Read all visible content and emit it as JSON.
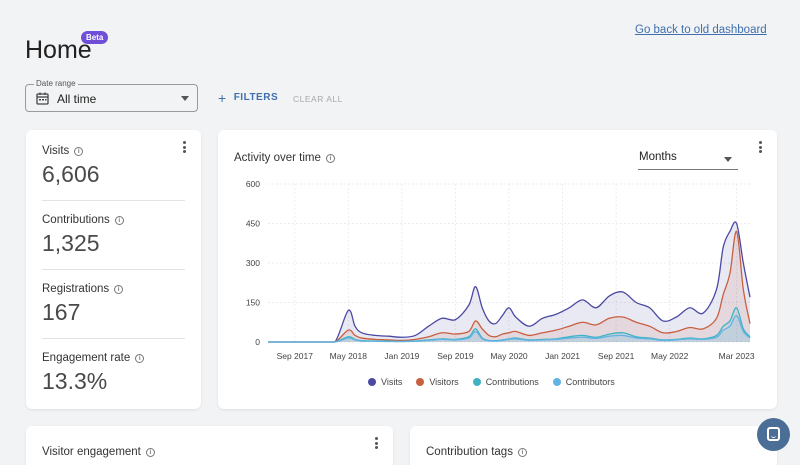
{
  "header": {
    "title": "Home",
    "badge": "Beta",
    "back_link": "Go back to old dashboard"
  },
  "filters": {
    "date_range_label": "Date range",
    "date_range_value": "All time",
    "filters_label": "FILTERS",
    "clear_label": "CLEAR ALL"
  },
  "metrics": [
    {
      "label": "Visits",
      "value": "6,606"
    },
    {
      "label": "Contributions",
      "value": "1,325"
    },
    {
      "label": "Registrations",
      "value": "167"
    },
    {
      "label": "Engagement rate",
      "value": "13.3%"
    }
  ],
  "activity": {
    "title": "Activity over time",
    "granularity": "Months"
  },
  "bottom_cards": {
    "left_title": "Visitor engagement",
    "right_title": "Contribution tags"
  },
  "colors": {
    "visits": "#4b4aa3",
    "visitors": "#c8603f",
    "contributions": "#3fb3c3",
    "contributors": "#62b3e3",
    "accent": "#6f4fd8",
    "link": "#3f6fae"
  },
  "chart_data": {
    "type": "area",
    "title": "Activity over time",
    "yticks": [
      "600",
      "450",
      "300",
      "150",
      "0"
    ],
    "ylim": [
      0,
      600
    ],
    "xlim": [
      "2017-05",
      "2023-05"
    ],
    "xticks": [
      "Sep 2017",
      "May 2018",
      "Jan 2019",
      "Sep 2019",
      "May 2020",
      "Jan 2021",
      "Sep 2021",
      "May 2022",
      "Mar 2023"
    ],
    "grid": true,
    "legend": "bottom",
    "x": [
      "2017-05",
      "2017-09",
      "2018-01",
      "2018-03",
      "2018-05",
      "2018-06",
      "2018-07",
      "2018-09",
      "2018-11",
      "2019-01",
      "2019-03",
      "2019-05",
      "2019-07",
      "2019-09",
      "2019-11",
      "2019-12",
      "2020-01",
      "2020-02",
      "2020-03",
      "2020-04",
      "2020-05",
      "2020-06",
      "2020-08",
      "2020-10",
      "2020-12",
      "2021-02",
      "2021-04",
      "2021-06",
      "2021-08",
      "2021-10",
      "2021-12",
      "2022-02",
      "2022-04",
      "2022-06",
      "2022-08",
      "2022-10",
      "2022-12",
      "2023-01",
      "2023-02",
      "2023-03",
      "2023-04",
      "2023-05"
    ],
    "series": [
      {
        "name": "Visits",
        "values": [
          0,
          0,
          0,
          0,
          120,
          60,
          35,
          25,
          22,
          18,
          25,
          60,
          90,
          85,
          140,
          210,
          130,
          80,
          70,
          100,
          130,
          95,
          60,
          90,
          105,
          130,
          160,
          130,
          175,
          190,
          150,
          130,
          80,
          95,
          130,
          110,
          200,
          360,
          420,
          450,
          300,
          170
        ]
      },
      {
        "name": "Visitors",
        "values": [
          0,
          0,
          0,
          0,
          45,
          25,
          15,
          10,
          8,
          6,
          10,
          20,
          35,
          30,
          40,
          80,
          50,
          25,
          20,
          30,
          35,
          40,
          25,
          35,
          45,
          60,
          75,
          65,
          90,
          95,
          75,
          60,
          35,
          40,
          55,
          50,
          90,
          180,
          260,
          420,
          200,
          70
        ]
      },
      {
        "name": "Contributions",
        "values": [
          0,
          0,
          0,
          0,
          20,
          10,
          5,
          4,
          3,
          2,
          4,
          8,
          12,
          10,
          20,
          50,
          15,
          6,
          5,
          8,
          12,
          15,
          8,
          10,
          12,
          20,
          25,
          18,
          30,
          35,
          20,
          15,
          8,
          10,
          15,
          12,
          25,
          60,
          80,
          130,
          50,
          20
        ]
      },
      {
        "name": "Contributors",
        "values": [
          0,
          0,
          0,
          0,
          15,
          8,
          4,
          3,
          2,
          2,
          3,
          6,
          10,
          8,
          15,
          40,
          12,
          5,
          4,
          6,
          10,
          12,
          6,
          8,
          10,
          15,
          18,
          14,
          22,
          25,
          15,
          12,
          6,
          8,
          12,
          10,
          18,
          45,
          60,
          100,
          40,
          15
        ]
      }
    ]
  }
}
